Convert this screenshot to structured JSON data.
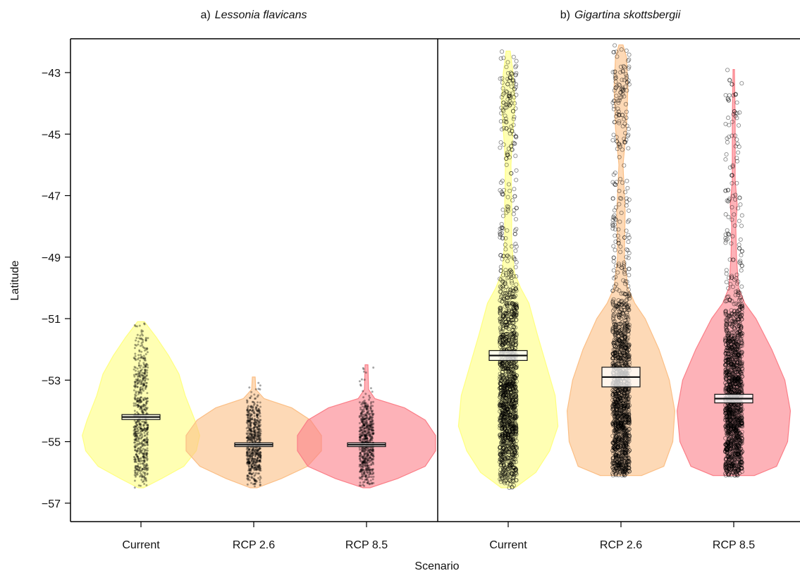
{
  "chart_data": {
    "type": "violin",
    "xlabel": "Scenario",
    "ylabel": "Latitude",
    "ylim": [
      -57.6,
      -41.9
    ],
    "yticks": [
      -43,
      -45,
      -47,
      -49,
      -51,
      -53,
      -55,
      -57
    ],
    "categories": [
      "Current",
      "RCP 2.6",
      "RCP 8.5"
    ],
    "colors": {
      "Current": "#ffff80",
      "RCP 2.6": "#fbbf86",
      "RCP 8.5": "#fb7f88"
    },
    "panels": [
      {
        "prefix": "a)",
        "species": "Lessonia flavicans",
        "point_style": "filled",
        "groups": [
          {
            "scenario": "Current",
            "min": -56.5,
            "max": -51.1,
            "mean": -54.2,
            "band": 0.08,
            "density": [
              [
                -56.5,
                0.04
              ],
              [
                -56.2,
                0.3
              ],
              [
                -55.8,
                0.62
              ],
              [
                -55.3,
                0.8
              ],
              [
                -54.8,
                0.85
              ],
              [
                -54.3,
                0.78
              ],
              [
                -53.5,
                0.64
              ],
              [
                -52.8,
                0.55
              ],
              [
                -52.2,
                0.4
              ],
              [
                -51.6,
                0.22
              ],
              [
                -51.1,
                0.05
              ]
            ]
          },
          {
            "scenario": "RCP 2.6",
            "min": -56.5,
            "max": -52.9,
            "mean": -55.1,
            "band": 0.06,
            "density": [
              [
                -56.5,
                0.05
              ],
              [
                -56.2,
                0.4
              ],
              [
                -55.8,
                0.78
              ],
              [
                -55.3,
                0.98
              ],
              [
                -54.8,
                0.98
              ],
              [
                -54.3,
                0.82
              ],
              [
                -53.9,
                0.55
              ],
              [
                -53.6,
                0.15
              ],
              [
                -53.3,
                0.03
              ],
              [
                -52.9,
                0.02
              ]
            ]
          },
          {
            "scenario": "RCP 8.5",
            "min": -56.5,
            "max": -52.5,
            "mean": -55.1,
            "band": 0.06,
            "density": [
              [
                -56.5,
                0.05
              ],
              [
                -56.2,
                0.45
              ],
              [
                -55.8,
                0.85
              ],
              [
                -55.3,
                1.0
              ],
              [
                -54.8,
                1.0
              ],
              [
                -54.3,
                0.85
              ],
              [
                -53.9,
                0.55
              ],
              [
                -53.6,
                0.12
              ],
              [
                -53.3,
                0.03
              ],
              [
                -52.5,
                0.02
              ]
            ]
          }
        ]
      },
      {
        "prefix": "b)",
        "species": "Gigartina skottsbergii",
        "point_style": "open",
        "groups": [
          {
            "scenario": "Current",
            "min": -56.5,
            "max": -42.3,
            "mean": -52.2,
            "band": 0.16,
            "density": [
              [
                -56.5,
                0.1
              ],
              [
                -56.0,
                0.4
              ],
              [
                -55.3,
                0.6
              ],
              [
                -54.5,
                0.72
              ],
              [
                -53.5,
                0.68
              ],
              [
                -52.5,
                0.55
              ],
              [
                -51.5,
                0.42
              ],
              [
                -50.5,
                0.3
              ],
              [
                -50.0,
                0.18
              ],
              [
                -49.5,
                0.09
              ],
              [
                -48.5,
                0.05
              ],
              [
                -47.2,
                0.05
              ],
              [
                -46.0,
                0.04
              ],
              [
                -45.2,
                0.06
              ],
              [
                -44.0,
                0.1
              ],
              [
                -43.0,
                0.07
              ],
              [
                -42.3,
                0.03
              ]
            ]
          },
          {
            "scenario": "RCP 2.6",
            "min": -56.1,
            "max": -42.1,
            "mean": -52.9,
            "band": 0.32,
            "density": [
              [
                -56.1,
                0.3
              ],
              [
                -55.8,
                0.62
              ],
              [
                -55.0,
                0.75
              ],
              [
                -54.0,
                0.78
              ],
              [
                -53.0,
                0.7
              ],
              [
                -52.0,
                0.55
              ],
              [
                -51.0,
                0.35
              ],
              [
                -50.5,
                0.2
              ],
              [
                -50.0,
                0.1
              ],
              [
                -49.0,
                0.05
              ],
              [
                -47.5,
                0.06
              ],
              [
                -46.0,
                0.03
              ],
              [
                -44.8,
                0.08
              ],
              [
                -43.5,
                0.1
              ],
              [
                -42.5,
                0.08
              ],
              [
                -42.1,
                0.03
              ]
            ]
          },
          {
            "scenario": "RCP 8.5",
            "min": -56.1,
            "max": -42.9,
            "mean": -53.6,
            "band": 0.14,
            "density": [
              [
                -56.1,
                0.3
              ],
              [
                -55.8,
                0.62
              ],
              [
                -55.0,
                0.78
              ],
              [
                -54.0,
                0.82
              ],
              [
                -53.0,
                0.74
              ],
              [
                -52.0,
                0.55
              ],
              [
                -51.0,
                0.32
              ],
              [
                -50.5,
                0.16
              ],
              [
                -50.0,
                0.07
              ],
              [
                -49.0,
                0.04
              ],
              [
                -48.0,
                0.03
              ],
              [
                -47.3,
                0.05
              ],
              [
                -46.5,
                0.02
              ],
              [
                -44.5,
                0.02
              ],
              [
                -43.0,
                0.01
              ],
              [
                -42.9,
                0.01
              ]
            ]
          }
        ]
      }
    ]
  }
}
